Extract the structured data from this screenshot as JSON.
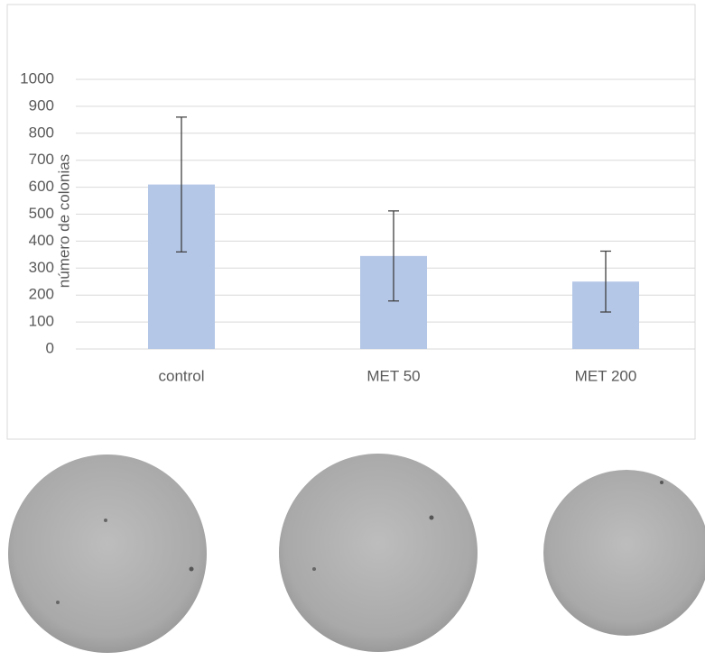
{
  "chart_data": {
    "type": "bar",
    "y_label": "número de colonias",
    "categories": [
      "control",
      "MET 50",
      "MET 200"
    ],
    "values": [
      610,
      345,
      250
    ],
    "errors": [
      250,
      167,
      113
    ],
    "color": "#b4c7e7",
    "error_color": "#404040",
    "ylim": [
      0,
      1000
    ],
    "yticks": [
      0,
      100,
      200,
      300,
      400,
      500,
      600,
      700,
      800,
      900,
      1000
    ],
    "grid": true
  }
}
